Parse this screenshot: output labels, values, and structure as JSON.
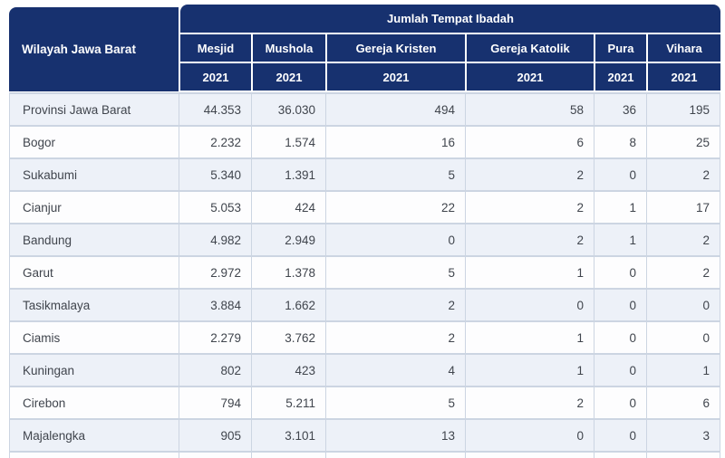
{
  "header": {
    "region_column": "Wilayah Jawa Barat",
    "group_title": "Jumlah Tempat Ibadah",
    "columns": [
      {
        "label": "Mesjid",
        "year": "2021"
      },
      {
        "label": "Mushola",
        "year": "2021"
      },
      {
        "label": "Gereja Kristen",
        "year": "2021"
      },
      {
        "label": "Gereja Katolik",
        "year": "2021"
      },
      {
        "label": "Pura",
        "year": "2021"
      },
      {
        "label": "Vihara",
        "year": "2021"
      }
    ]
  },
  "rows": [
    {
      "region": "Provinsi Jawa Barat",
      "values": [
        "44.353",
        "36.030",
        "494",
        "58",
        "36",
        "195"
      ]
    },
    {
      "region": "Bogor",
      "values": [
        "2.232",
        "1.574",
        "16",
        "6",
        "8",
        "25"
      ]
    },
    {
      "region": "Sukabumi",
      "values": [
        "5.340",
        "1.391",
        "5",
        "2",
        "0",
        "2"
      ]
    },
    {
      "region": "Cianjur",
      "values": [
        "5.053",
        "424",
        "22",
        "2",
        "1",
        "17"
      ]
    },
    {
      "region": "Bandung",
      "values": [
        "4.982",
        "2.949",
        "0",
        "2",
        "1",
        "2"
      ]
    },
    {
      "region": "Garut",
      "values": [
        "2.972",
        "1.378",
        "5",
        "1",
        "0",
        "2"
      ]
    },
    {
      "region": "Tasikmalaya",
      "values": [
        "3.884",
        "1.662",
        "2",
        "0",
        "0",
        "0"
      ]
    },
    {
      "region": "Ciamis",
      "values": [
        "2.279",
        "3.762",
        "2",
        "1",
        "0",
        "0"
      ]
    },
    {
      "region": "Kuningan",
      "values": [
        "802",
        "423",
        "4",
        "1",
        "0",
        "1"
      ]
    },
    {
      "region": "Cirebon",
      "values": [
        "794",
        "5.211",
        "5",
        "2",
        "0",
        "6"
      ]
    },
    {
      "region": "Majalengka",
      "values": [
        "905",
        "3.101",
        "13",
        "0",
        "0",
        "3"
      ]
    }
  ],
  "colors": {
    "header_bg": "#17316F",
    "header_text": "#FFFFFF",
    "row_alt_bg": "#EDF1F8",
    "row_bg": "#FDFDFE",
    "border": "#CCD5E2",
    "cell_text": "#40454D"
  }
}
